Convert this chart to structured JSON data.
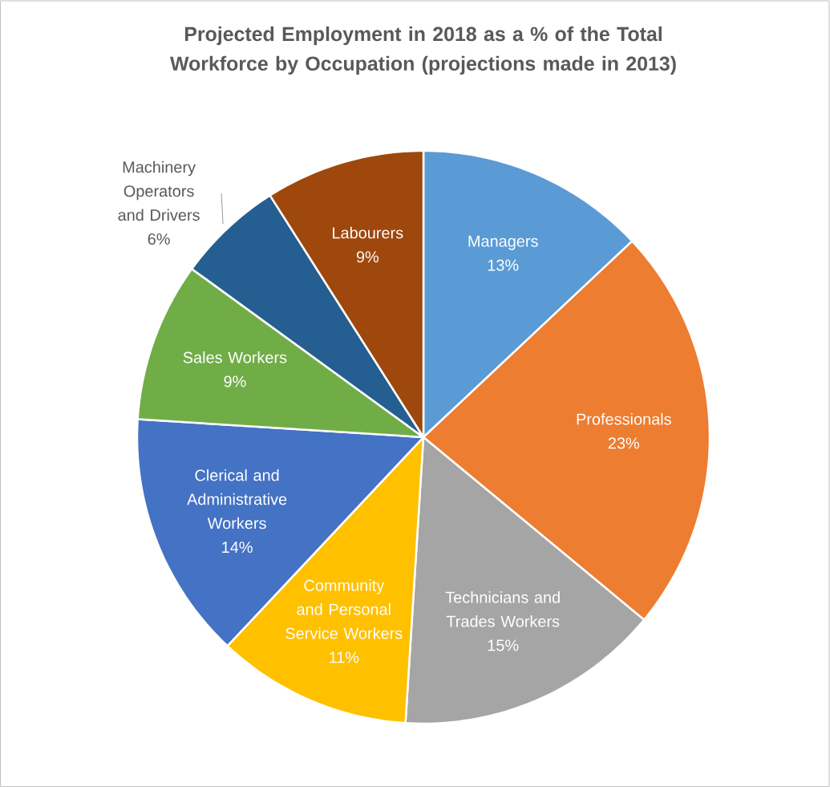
{
  "chart_data": {
    "type": "pie",
    "title": "Projected Employment in 2018 as a % of the Total Workforce by Occupation (projections made in 2013)",
    "categories": [
      "Managers",
      "Professionals",
      "Technicians and Trades Workers",
      "Community and Personal Service Workers",
      "Clerical and Administrative Workers",
      "Sales Workers",
      "Machinery Operators and Drivers",
      "Labourers"
    ],
    "values": [
      13,
      23,
      15,
      11,
      14,
      9,
      6,
      9
    ],
    "value_labels": [
      "13%",
      "23%",
      "15%",
      "11%",
      "14%",
      "9%",
      "6%",
      "9%"
    ],
    "colors": [
      "#5b9bd5",
      "#ed7d31",
      "#a5a5a5",
      "#ffc000",
      "#4472c4",
      "#70ad47",
      "#255e91",
      "#9e480e"
    ],
    "legend": false
  }
}
